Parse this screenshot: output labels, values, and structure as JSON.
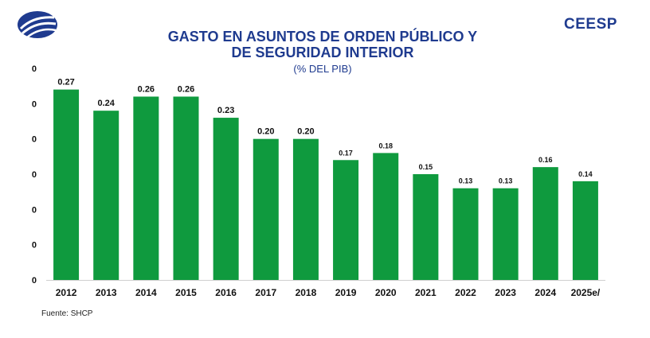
{
  "header": {
    "brand": "CEESP",
    "title_line1": "GASTO EN ASUNTOS DE ORDEN PÚBLICO Y",
    "title_line2": "DE SEGURIDAD INTERIOR",
    "subtitle": "(% DEL PIB)"
  },
  "source": "Fuente: SHCP",
  "colors": {
    "bar": "#0f9a3e",
    "title": "#1f3b8f",
    "text": "#111111"
  },
  "chart_data": {
    "type": "bar",
    "title": "GASTO EN ASUNTOS DE ORDEN PÚBLICO Y DE SEGURIDAD INTERIOR",
    "subtitle": "(% DEL PIB)",
    "categories": [
      "2012",
      "2013",
      "2014",
      "2015",
      "2016",
      "2017",
      "2018",
      "2019",
      "2020",
      "2021",
      "2022",
      "2023",
      "2024",
      "2025e/"
    ],
    "values": [
      0.27,
      0.24,
      0.26,
      0.26,
      0.23,
      0.2,
      0.2,
      0.17,
      0.18,
      0.15,
      0.13,
      0.13,
      0.16,
      0.14
    ],
    "value_labels": [
      "0.27",
      "0.24",
      "0.26",
      "0.26",
      "0.23",
      "0.20",
      "0.20",
      "0.17",
      "0.18",
      "0.15",
      "0.13",
      "0.13",
      "0.16",
      "0.14"
    ],
    "y_ticks": [
      0,
      0.05,
      0.1,
      0.15,
      0.2,
      0.25,
      0.3
    ],
    "y_tick_labels": [
      "0",
      "0",
      "0",
      "0",
      "0",
      "0",
      "0"
    ],
    "ylim": [
      0,
      0.3
    ],
    "xlabel": "",
    "ylabel": "",
    "grid": false
  }
}
